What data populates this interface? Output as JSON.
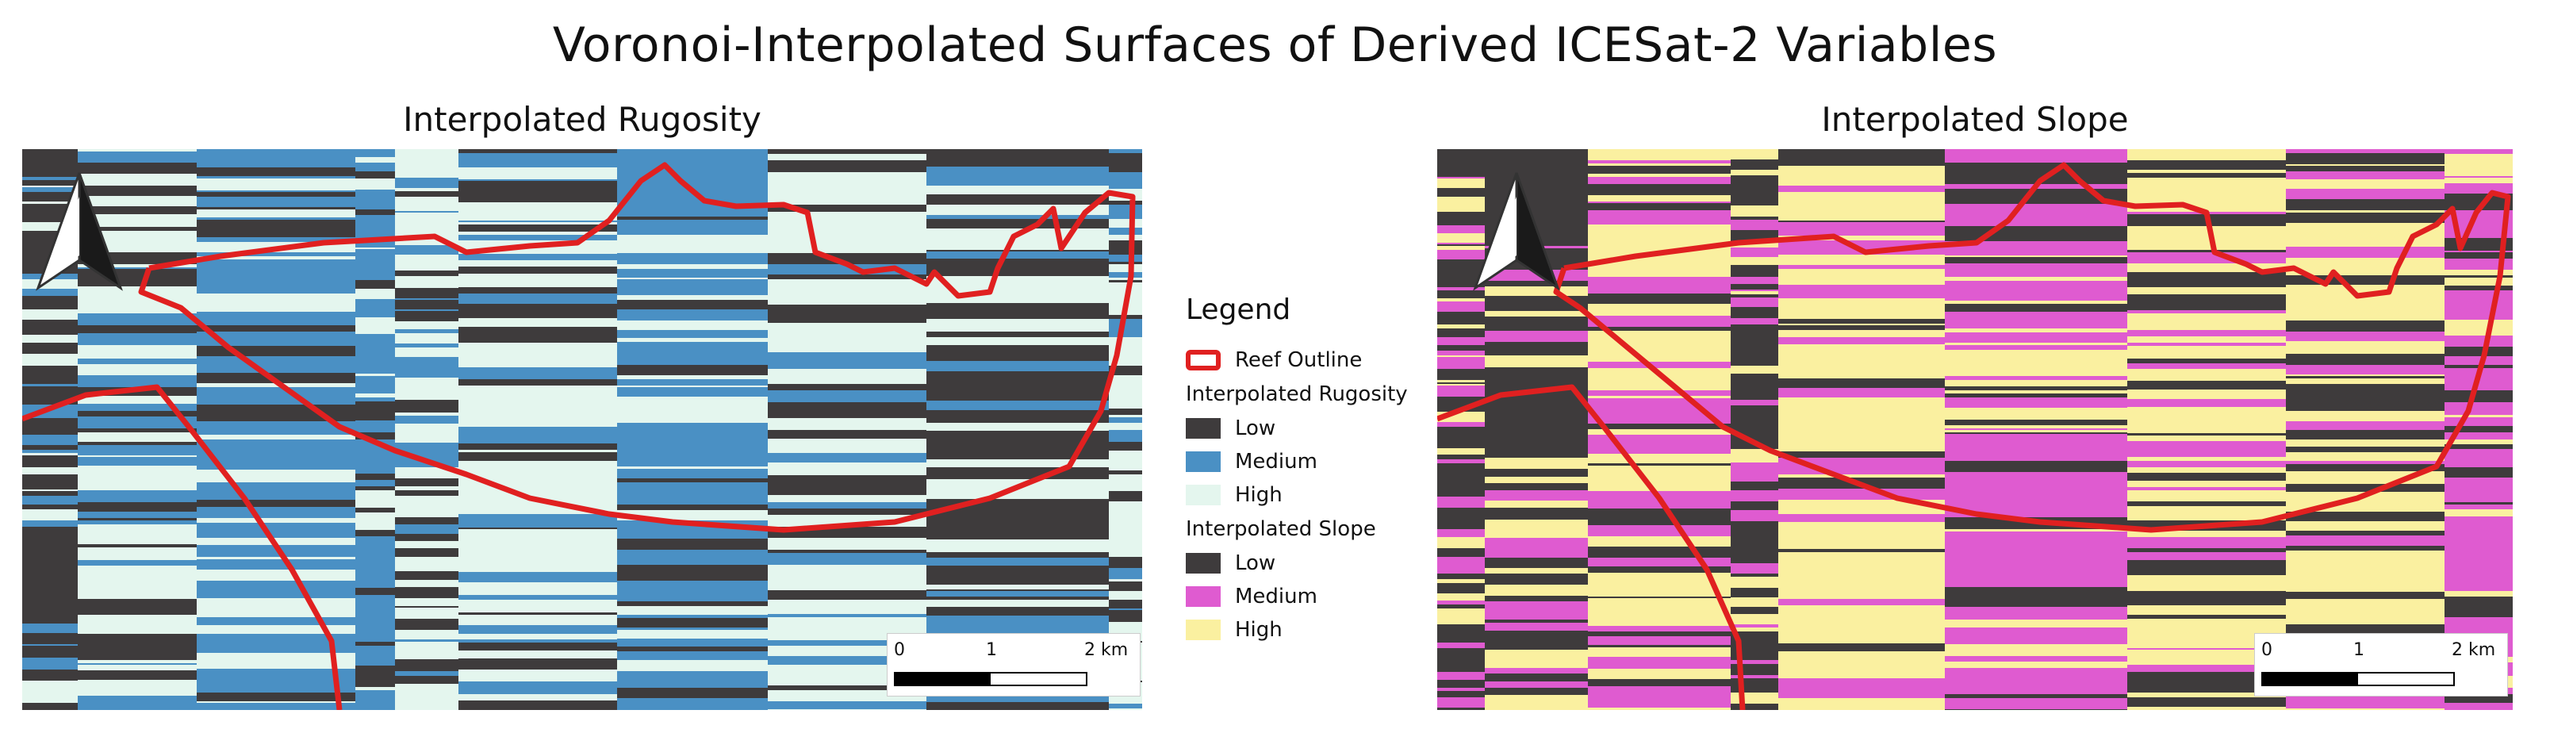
{
  "title": "Voronoi-Interpolated Surfaces of Derived ICESat-2 Variables",
  "panels": {
    "left": {
      "title": "Interpolated Rugosity"
    },
    "right": {
      "title": "Interpolated Slope"
    }
  },
  "legend": {
    "title": "Legend",
    "outline_label": "Reef Outline",
    "outline_color": "#e02020",
    "rugosity": {
      "title": "Interpolated Rugosity",
      "classes": [
        {
          "label": "Low",
          "color": "#3e3b3c"
        },
        {
          "label": "Medium",
          "color": "#4a90c4"
        },
        {
          "label": "High",
          "color": "#e4f6ee"
        }
      ]
    },
    "slope": {
      "title": "Interpolated Slope",
      "classes": [
        {
          "label": "Low",
          "color": "#3e3b3c"
        },
        {
          "label": "Medium",
          "color": "#df5bd0"
        },
        {
          "label": "High",
          "color": "#faf0a0"
        }
      ]
    }
  },
  "scalebar": {
    "labels": [
      "0",
      "1",
      "2 km"
    ]
  },
  "north_arrow": {
    "icon": "north-arrow-icon"
  }
}
